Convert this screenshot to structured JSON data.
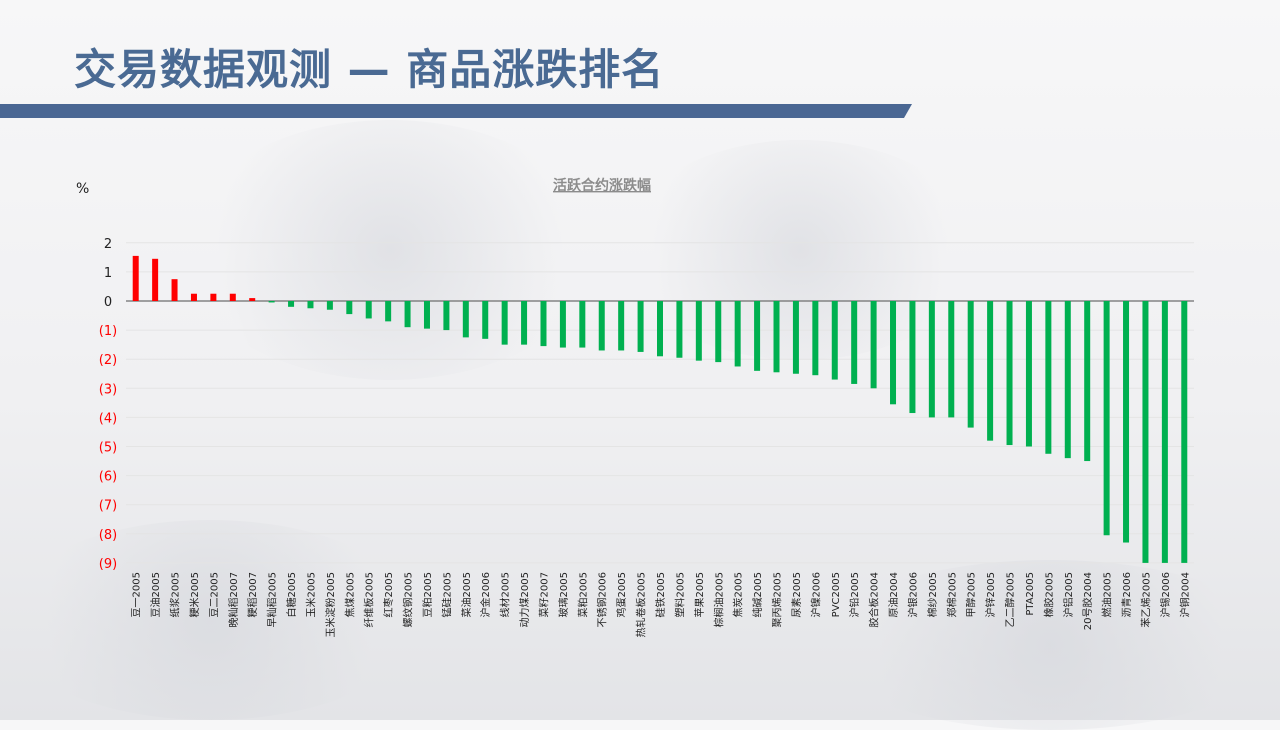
{
  "page": {
    "title": "交易数据观测 — 商品涨跌排名"
  },
  "colors": {
    "title": "#4a6a93",
    "bar_bar": "#4a6793",
    "up": "#ff0000",
    "down": "#00b050",
    "axis_neg_label": "#ff0000"
  },
  "chart_data": {
    "type": "bar",
    "title": "活跃合约涨跌幅",
    "ylabel": "%",
    "ylim": [
      -9,
      2
    ],
    "yticks": [
      2,
      1,
      0,
      -1,
      -2,
      -3,
      -4,
      -5,
      -6,
      -7,
      -8,
      -9
    ],
    "ytick_labels": [
      "2",
      "1",
      "0",
      "(1)",
      "(2)",
      "(3)",
      "(4)",
      "(5)",
      "(6)",
      "(7)",
      "(8)",
      "(9)"
    ],
    "grid": true,
    "categories": [
      "豆一2005",
      "豆油2005",
      "纸浆2005",
      "粳米2005",
      "豆二2005",
      "晚籼稻2007",
      "粳稻2007",
      "早籼稻2005",
      "白糖2005",
      "玉米2005",
      "玉米淀粉2005",
      "焦煤2005",
      "纤维板2005",
      "红枣2005",
      "螺纹钢2005",
      "豆粕2005",
      "锰硅2005",
      "菜油2005",
      "沪金2006",
      "线材2005",
      "动力煤2005",
      "菜籽2007",
      "玻璃2005",
      "菜粕2005",
      "不锈钢2006",
      "鸡蛋2005",
      "热轧卷板2005",
      "硅铁2005",
      "塑料2005",
      "苹果2005",
      "棕榈油2005",
      "焦炭2005",
      "纯碱2005",
      "聚丙烯2005",
      "尿素2005",
      "沪镍2006",
      "PVC2005",
      "沪铅2005",
      "胶合板2004",
      "原油2004",
      "沪银2006",
      "棉纱2005",
      "郑棉2005",
      "甲醇2005",
      "沪锌2005",
      "乙二醇2005",
      "PTA2005",
      "橡胶2005",
      "沪铝2005",
      "20号胶2004",
      "燃油2005",
      "沥青2006",
      "苯乙烯2005",
      "沪锡2006",
      "沪铜2004"
    ],
    "values": [
      1.55,
      1.45,
      0.75,
      0.25,
      0.25,
      0.25,
      0.1,
      -0.05,
      -0.2,
      -0.25,
      -0.3,
      -0.45,
      -0.6,
      -0.7,
      -0.9,
      -0.95,
      -1.0,
      -1.25,
      -1.3,
      -1.5,
      -1.5,
      -1.55,
      -1.6,
      -1.6,
      -1.7,
      -1.7,
      -1.75,
      -1.9,
      -1.95,
      -2.05,
      -2.1,
      -2.25,
      -2.4,
      -2.45,
      -2.5,
      -2.55,
      -2.7,
      -2.85,
      -3.0,
      -3.55,
      -3.85,
      -4.0,
      -4.0,
      -4.35,
      -4.8,
      -4.95,
      -5.0,
      -5.25,
      -5.4,
      -5.5,
      -8.05,
      -8.3,
      -9.0,
      -9.0,
      -9.0
    ]
  }
}
